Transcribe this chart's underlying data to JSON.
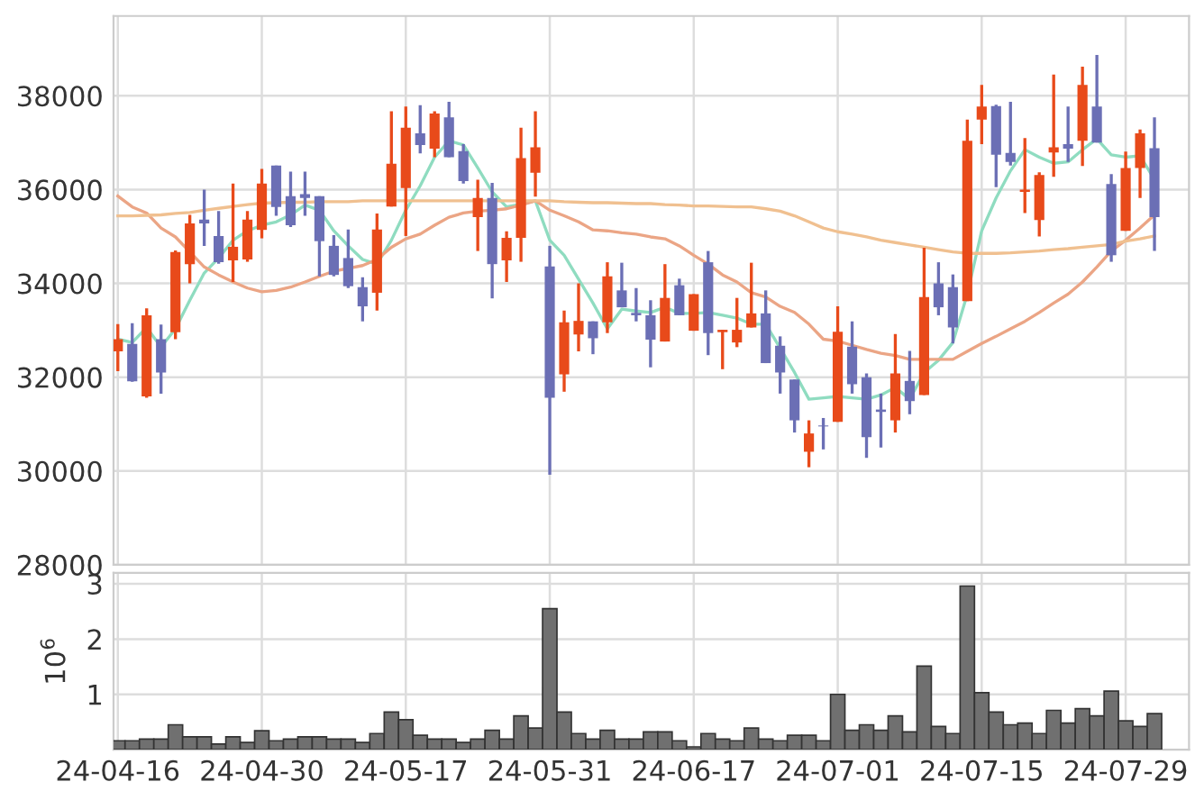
{
  "chart_data": [
    {
      "type": "candlestick",
      "categories": [
        null,
        null,
        null,
        null,
        null,
        null,
        null,
        null,
        null,
        null,
        null,
        null,
        null,
        null,
        null,
        null,
        null,
        null,
        null,
        null,
        null,
        null,
        null,
        null,
        null,
        null,
        null,
        null,
        null,
        null,
        null,
        null,
        null,
        null,
        null,
        null,
        null,
        null,
        null,
        null,
        null,
        null,
        null,
        null,
        null,
        null,
        null,
        null,
        null,
        null,
        null,
        null,
        null,
        null,
        null,
        null,
        null,
        null,
        null,
        null,
        null,
        null,
        null,
        null,
        null,
        null,
        null,
        null,
        null,
        null,
        null,
        null,
        null
      ],
      "ohlc": [
        [
          32550,
          33130,
          32130,
          32810
        ],
        [
          32710,
          33150,
          31900,
          31910
        ],
        [
          31590,
          33470,
          31560,
          33320
        ],
        [
          32810,
          33120,
          31650,
          32100
        ],
        [
          32960,
          34700,
          32810,
          34670
        ],
        [
          34410,
          35460,
          34000,
          35280
        ],
        [
          35360,
          36000,
          34800,
          35280
        ],
        [
          35010,
          35540,
          34420,
          34450
        ],
        [
          34490,
          36130,
          34030,
          34780
        ],
        [
          34510,
          35540,
          34460,
          35360
        ],
        [
          35140,
          36440,
          34960,
          36130
        ],
        [
          36510,
          36510,
          35440,
          35630
        ],
        [
          35860,
          36380,
          35200,
          35240
        ],
        [
          35900,
          36380,
          35440,
          35820
        ],
        [
          35860,
          35860,
          34150,
          34900
        ],
        [
          34800,
          35030,
          34150,
          34180
        ],
        [
          34540,
          35150,
          33900,
          33940
        ],
        [
          33920,
          34130,
          33190,
          33510
        ],
        [
          33800,
          35490,
          33420,
          35150
        ],
        [
          35640,
          37670,
          35640,
          36550
        ],
        [
          36030,
          37770,
          35010,
          37320
        ],
        [
          37200,
          37800,
          36770,
          36950
        ],
        [
          36870,
          37670,
          36690,
          37620
        ],
        [
          37540,
          37870,
          36690,
          36690
        ],
        [
          36820,
          36970,
          36130,
          36180
        ],
        [
          35410,
          36210,
          34690,
          35820
        ],
        [
          35820,
          36140,
          33680,
          34410
        ],
        [
          34490,
          35110,
          34030,
          34970
        ],
        [
          34970,
          37320,
          34460,
          36670
        ],
        [
          36360,
          37670,
          35850,
          36900
        ],
        [
          34360,
          34800,
          29920,
          31560
        ],
        [
          32060,
          33420,
          31690,
          33170
        ],
        [
          32910,
          34000,
          32550,
          33200
        ],
        [
          33190,
          33190,
          32490,
          32830
        ],
        [
          33170,
          34450,
          32940,
          34150
        ],
        [
          33850,
          34440,
          33490,
          33490
        ],
        [
          33370,
          33900,
          33190,
          33320
        ],
        [
          33320,
          33640,
          32210,
          32800
        ],
        [
          32760,
          34410,
          32760,
          33690
        ],
        [
          33960,
          34100,
          33320,
          33320
        ],
        [
          32990,
          33770,
          32990,
          33770
        ],
        [
          34450,
          34690,
          32470,
          32940
        ],
        [
          32960,
          33010,
          32170,
          33010
        ],
        [
          32740,
          33690,
          32640,
          33010
        ],
        [
          33060,
          34440,
          33060,
          33360
        ],
        [
          33360,
          33850,
          32300,
          32300
        ],
        [
          32670,
          32870,
          31650,
          32100
        ],
        [
          31950,
          31950,
          30820,
          31080
        ],
        [
          30410,
          31080,
          30080,
          30800
        ],
        [
          30970,
          31130,
          30460,
          30950
        ],
        [
          31050,
          33510,
          31050,
          32970
        ],
        [
          32650,
          33190,
          31650,
          31850
        ],
        [
          32000,
          32080,
          30280,
          30720
        ],
        [
          31310,
          31650,
          30500,
          31260
        ],
        [
          31080,
          32920,
          30820,
          32080
        ],
        [
          31920,
          32560,
          31210,
          31490
        ],
        [
          31620,
          34760,
          31620,
          33710
        ],
        [
          34000,
          34450,
          33320,
          33490
        ],
        [
          33920,
          34190,
          32720,
          33060
        ],
        [
          33620,
          37490,
          33620,
          37040
        ],
        [
          37490,
          38230,
          36970,
          37770
        ],
        [
          37780,
          37810,
          36050,
          36740
        ],
        [
          36780,
          37870,
          36510,
          36590
        ],
        [
          35950,
          37100,
          35500,
          36000
        ],
        [
          35350,
          36370,
          35000,
          36310
        ],
        [
          36790,
          38450,
          36270,
          36900
        ],
        [
          36970,
          37770,
          36590,
          36870
        ],
        [
          37040,
          38620,
          36500,
          38230
        ],
        [
          37770,
          38870,
          37000,
          37000
        ],
        [
          36120,
          36330,
          34460,
          34600
        ],
        [
          35120,
          36810,
          35120,
          36460
        ],
        [
          36460,
          37280,
          35820,
          37200
        ],
        [
          36880,
          37540,
          34690,
          35410
        ]
      ],
      "colors": [
        "#e84a1a",
        "#6b6fb5",
        "#e84a1a",
        "#6b6fb5",
        "#e84a1a",
        "#e84a1a",
        "#6b6fb5",
        "#6b6fb5",
        "#e84a1a",
        "#e84a1a",
        "#e84a1a",
        "#6b6fb5",
        "#6b6fb5",
        "#6b6fb5",
        "#6b6fb5",
        "#6b6fb5",
        "#6b6fb5",
        "#6b6fb5",
        "#e84a1a",
        "#e84a1a",
        "#e84a1a",
        "#6b6fb5",
        "#e84a1a",
        "#6b6fb5",
        "#6b6fb5",
        "#e84a1a",
        "#6b6fb5",
        "#e84a1a",
        "#e84a1a",
        "#e84a1a",
        "#6b6fb5",
        "#e84a1a",
        "#e84a1a",
        "#6b6fb5",
        "#e84a1a",
        "#6b6fb5",
        "#6b6fb5",
        "#6b6fb5",
        "#e84a1a",
        "#6b6fb5",
        "#e84a1a",
        "#6b6fb5",
        "#e84a1a",
        "#e84a1a",
        "#e84a1a",
        "#6b6fb5",
        "#6b6fb5",
        "#6b6fb5",
        "#e84a1a",
        "#6b6fb5",
        "#e84a1a",
        "#6b6fb5",
        "#6b6fb5",
        "#6b6fb5",
        "#e84a1a",
        "#6b6fb5",
        "#e84a1a",
        "#6b6fb5",
        "#6b6fb5",
        "#e84a1a",
        "#e84a1a",
        "#6b6fb5",
        "#6b6fb5",
        "#e84a1a",
        "#e84a1a",
        "#e84a1a",
        "#6b6fb5",
        "#e84a1a",
        "#6b6fb5",
        "#6b6fb5",
        "#e84a1a",
        "#e84a1a",
        "#6b6fb5"
      ],
      "series": [
        {
          "type": "line",
          "color": "#8fdcc0",
          "values": [
            32810,
            32740,
            33060,
            32640,
            33030,
            33640,
            34220,
            34540,
            34920,
            35120,
            35240,
            35310,
            35460,
            35670,
            35560,
            35120,
            34800,
            34510,
            34410,
            34920,
            35560,
            36080,
            36690,
            37040,
            36950,
            36460,
            35950,
            35630,
            35690,
            35760,
            34920,
            34600,
            34090,
            33580,
            33030,
            33450,
            33410,
            33380,
            33490,
            33360,
            33360,
            33380,
            33320,
            33260,
            33130,
            33130,
            32620,
            32100,
            31530,
            31560,
            31590,
            31560,
            31530,
            31620,
            31780,
            31530,
            32100,
            32360,
            32740,
            33770,
            35120,
            35820,
            36400,
            36850,
            36690,
            36560,
            36590,
            36850,
            37080,
            36740,
            36690,
            36720,
            36210
          ]
        },
        {
          "type": "line",
          "color": "#eba585",
          "values": [
            35860,
            35630,
            35500,
            35180,
            34990,
            34670,
            34350,
            34180,
            34030,
            33900,
            33820,
            33850,
            33920,
            34030,
            34150,
            34260,
            34320,
            34380,
            34510,
            34770,
            34950,
            35050,
            35240,
            35410,
            35500,
            35540,
            35560,
            35590,
            35670,
            35760,
            35560,
            35440,
            35310,
            35140,
            35120,
            35080,
            35050,
            34990,
            34950,
            34800,
            34600,
            34410,
            34180,
            34030,
            33800,
            33710,
            33510,
            33380,
            33130,
            32810,
            32770,
            32680,
            32590,
            32510,
            32460,
            32380,
            32380,
            32380,
            32380,
            32550,
            32720,
            32870,
            33030,
            33190,
            33380,
            33580,
            33770,
            34030,
            34350,
            34690,
            34920,
            35180,
            35460
          ]
        },
        {
          "type": "line",
          "color": "#f0c090",
          "values": [
            35440,
            35440,
            35450,
            35460,
            35490,
            35510,
            35560,
            35600,
            35640,
            35680,
            35710,
            35720,
            35730,
            35730,
            35740,
            35740,
            35740,
            35760,
            35760,
            35760,
            35760,
            35760,
            35760,
            35760,
            35760,
            35760,
            35760,
            35760,
            35760,
            35760,
            35760,
            35740,
            35730,
            35720,
            35720,
            35710,
            35700,
            35700,
            35680,
            35670,
            35650,
            35650,
            35640,
            35630,
            35630,
            35590,
            35540,
            35440,
            35310,
            35180,
            35100,
            35050,
            34990,
            34920,
            34870,
            34820,
            34770,
            34720,
            34670,
            34640,
            34640,
            34640,
            34650,
            34670,
            34690,
            34720,
            34740,
            34770,
            34800,
            34830,
            34900,
            34950,
            35010
          ]
        }
      ],
      "ylim": [
        28000,
        39700
      ],
      "yticks": [
        28000,
        30000,
        32000,
        34000,
        36000,
        38000
      ],
      "grid": true,
      "tick_labels": "y"
    },
    {
      "type": "bar",
      "categories": [
        "24-04-16",
        null,
        null,
        null,
        null,
        null,
        null,
        null,
        null,
        null,
        "24-04-30",
        null,
        null,
        null,
        null,
        null,
        null,
        null,
        null,
        null,
        "24-05-17",
        null,
        null,
        null,
        null,
        null,
        null,
        null,
        null,
        null,
        "24-05-31",
        null,
        null,
        null,
        null,
        null,
        null,
        null,
        null,
        null,
        "24-06-17",
        null,
        null,
        null,
        null,
        null,
        null,
        null,
        null,
        null,
        "24-07-01",
        null,
        null,
        null,
        null,
        null,
        null,
        null,
        null,
        null,
        "24-07-15",
        null,
        null,
        null,
        null,
        null,
        null,
        null,
        null,
        null,
        "24-07-29",
        null,
        null
      ],
      "values": [
        0.16,
        0.16,
        0.19,
        0.19,
        0.45,
        0.23,
        0.23,
        0.1,
        0.23,
        0.13,
        0.34,
        0.16,
        0.19,
        0.23,
        0.23,
        0.19,
        0.19,
        0.13,
        0.29,
        0.68,
        0.54,
        0.26,
        0.19,
        0.19,
        0.13,
        0.19,
        0.35,
        0.19,
        0.61,
        0.39,
        2.55,
        0.68,
        0.29,
        0.19,
        0.35,
        0.19,
        0.19,
        0.32,
        0.32,
        0.16,
        0.05,
        0.29,
        0.19,
        0.16,
        0.39,
        0.19,
        0.16,
        0.26,
        0.26,
        0.16,
        1.0,
        0.35,
        0.45,
        0.35,
        0.61,
        0.32,
        1.51,
        0.42,
        0.29,
        2.96,
        1.03,
        0.68,
        0.45,
        0.48,
        0.29,
        0.71,
        0.48,
        0.74,
        0.61,
        1.06,
        0.52,
        0.42,
        0.65
      ],
      "color": "#707070",
      "ylabel": "10$^{6}$",
      "ylim": [
        0,
        3.2
      ],
      "yticks": [
        1,
        2,
        3
      ],
      "grid": true
    }
  ]
}
